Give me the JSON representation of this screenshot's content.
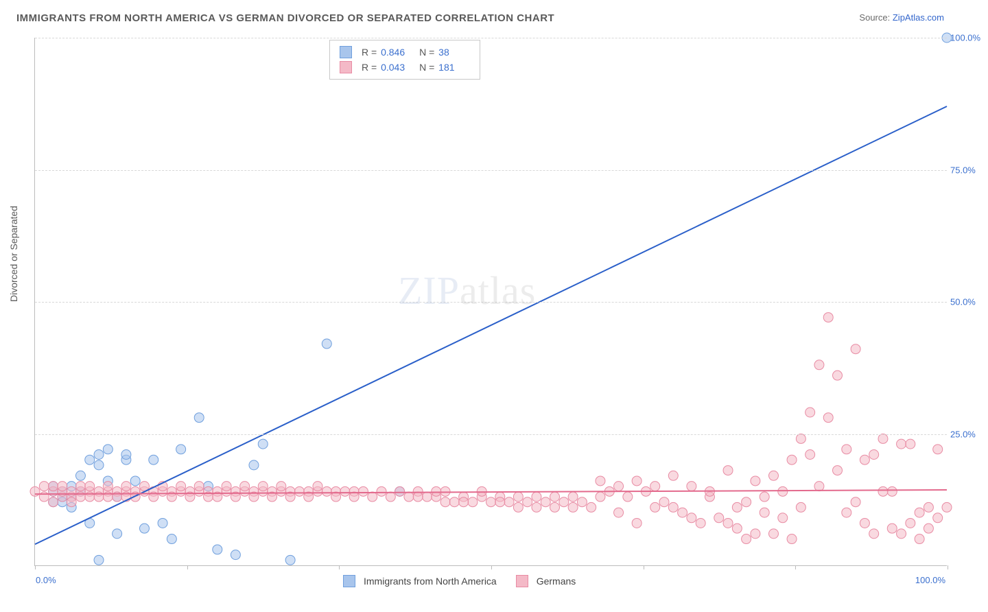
{
  "title": "IMMIGRANTS FROM NORTH AMERICA VS GERMAN DIVORCED OR SEPARATED CORRELATION CHART",
  "source_label": "Source:",
  "source_name": "ZipAtlas.com",
  "ylabel": "Divorced or Separated",
  "watermark_bold": "ZIP",
  "watermark_thin": "atlas",
  "chart": {
    "type": "scatter",
    "xlim": [
      0,
      100
    ],
    "ylim": [
      0,
      100
    ],
    "y_ticks": [
      25,
      50,
      75,
      100
    ],
    "y_tick_labels": [
      "25.0%",
      "50.0%",
      "75.0%",
      "100.0%"
    ],
    "x_ticks": [
      0,
      16.67,
      33.33,
      50,
      66.67,
      83.33,
      100
    ],
    "x_label_min": "0.0%",
    "x_label_max": "100.0%",
    "background_color": "#ffffff",
    "grid_color": "#d8d8d8",
    "series": [
      {
        "name": "Immigrants from North America",
        "color_fill": "#a8c5ec",
        "color_stroke": "#6f9fdd",
        "marker_radius": 7,
        "fill_opacity": 0.55,
        "stats": {
          "R": "0.846",
          "N": "38"
        },
        "trend": {
          "x1": 0,
          "y1": 4,
          "x2": 100,
          "y2": 87,
          "color": "#2a5fc9",
          "width": 2
        },
        "points": [
          [
            2,
            14
          ],
          [
            2,
            12
          ],
          [
            2,
            15
          ],
          [
            3,
            13
          ],
          [
            3,
            14
          ],
          [
            3,
            12
          ],
          [
            4,
            13
          ],
          [
            4,
            15
          ],
          [
            4,
            11
          ],
          [
            5,
            14
          ],
          [
            5,
            17
          ],
          [
            6,
            20
          ],
          [
            6,
            8
          ],
          [
            7,
            19
          ],
          [
            7,
            21
          ],
          [
            8,
            22
          ],
          [
            8,
            16
          ],
          [
            9,
            13
          ],
          [
            9,
            6
          ],
          [
            10,
            20
          ],
          [
            10,
            21
          ],
          [
            11,
            16
          ],
          [
            12,
            7
          ],
          [
            13,
            20
          ],
          [
            14,
            8
          ],
          [
            15,
            5
          ],
          [
            16,
            22
          ],
          [
            18,
            28
          ],
          [
            19,
            15
          ],
          [
            20,
            3
          ],
          [
            22,
            2
          ],
          [
            24,
            19
          ],
          [
            25,
            23
          ],
          [
            28,
            1
          ],
          [
            32,
            42
          ],
          [
            7,
            1
          ],
          [
            40,
            14
          ],
          [
            100,
            100
          ]
        ]
      },
      {
        "name": "Germans",
        "color_fill": "#f4b9c7",
        "color_stroke": "#e88ba3",
        "marker_radius": 7,
        "fill_opacity": 0.55,
        "stats": {
          "R": "0.043",
          "N": "181"
        },
        "trend": {
          "x1": 0,
          "y1": 13.5,
          "x2": 100,
          "y2": 14.3,
          "color": "#e36a8d",
          "width": 2
        },
        "points": [
          [
            0,
            14
          ],
          [
            1,
            13
          ],
          [
            1,
            15
          ],
          [
            2,
            14
          ],
          [
            2,
            12
          ],
          [
            2,
            15
          ],
          [
            3,
            13
          ],
          [
            3,
            14
          ],
          [
            3,
            15
          ],
          [
            4,
            13
          ],
          [
            4,
            14
          ],
          [
            4,
            12
          ],
          [
            5,
            14
          ],
          [
            5,
            13
          ],
          [
            5,
            15
          ],
          [
            6,
            14
          ],
          [
            6,
            13
          ],
          [
            6,
            15
          ],
          [
            7,
            14
          ],
          [
            7,
            13
          ],
          [
            8,
            14
          ],
          [
            8,
            15
          ],
          [
            8,
            13
          ],
          [
            9,
            14
          ],
          [
            9,
            13
          ],
          [
            10,
            14
          ],
          [
            10,
            15
          ],
          [
            10,
            13
          ],
          [
            11,
            14
          ],
          [
            11,
            13
          ],
          [
            12,
            14
          ],
          [
            12,
            15
          ],
          [
            13,
            14
          ],
          [
            13,
            13
          ],
          [
            14,
            14
          ],
          [
            14,
            15
          ],
          [
            15,
            14
          ],
          [
            15,
            13
          ],
          [
            16,
            14
          ],
          [
            16,
            15
          ],
          [
            17,
            14
          ],
          [
            17,
            13
          ],
          [
            18,
            14
          ],
          [
            18,
            15
          ],
          [
            19,
            14
          ],
          [
            19,
            13
          ],
          [
            20,
            14
          ],
          [
            20,
            13
          ],
          [
            21,
            14
          ],
          [
            21,
            15
          ],
          [
            22,
            14
          ],
          [
            22,
            13
          ],
          [
            23,
            14
          ],
          [
            23,
            15
          ],
          [
            24,
            14
          ],
          [
            24,
            13
          ],
          [
            25,
            14
          ],
          [
            25,
            15
          ],
          [
            26,
            14
          ],
          [
            26,
            13
          ],
          [
            27,
            14
          ],
          [
            27,
            15
          ],
          [
            28,
            14
          ],
          [
            28,
            13
          ],
          [
            29,
            14
          ],
          [
            30,
            14
          ],
          [
            30,
            13
          ],
          [
            31,
            14
          ],
          [
            31,
            15
          ],
          [
            32,
            14
          ],
          [
            33,
            14
          ],
          [
            33,
            13
          ],
          [
            34,
            14
          ],
          [
            35,
            14
          ],
          [
            35,
            13
          ],
          [
            36,
            14
          ],
          [
            37,
            13
          ],
          [
            38,
            14
          ],
          [
            39,
            13
          ],
          [
            40,
            14
          ],
          [
            41,
            13
          ],
          [
            42,
            14
          ],
          [
            43,
            13
          ],
          [
            44,
            13
          ],
          [
            45,
            12
          ],
          [
            46,
            12
          ],
          [
            47,
            13
          ],
          [
            48,
            12
          ],
          [
            49,
            13
          ],
          [
            50,
            12
          ],
          [
            51,
            13
          ],
          [
            52,
            12
          ],
          [
            53,
            11
          ],
          [
            54,
            12
          ],
          [
            55,
            11
          ],
          [
            56,
            12
          ],
          [
            57,
            11
          ],
          [
            58,
            12
          ],
          [
            59,
            11
          ],
          [
            60,
            12
          ],
          [
            61,
            11
          ],
          [
            62,
            13
          ],
          [
            63,
            14
          ],
          [
            64,
            15
          ],
          [
            65,
            13
          ],
          [
            66,
            16
          ],
          [
            67,
            14
          ],
          [
            68,
            11
          ],
          [
            69,
            12
          ],
          [
            70,
            17
          ],
          [
            71,
            10
          ],
          [
            72,
            15
          ],
          [
            73,
            8
          ],
          [
            74,
            13
          ],
          [
            75,
            9
          ],
          [
            76,
            18
          ],
          [
            77,
            7
          ],
          [
            78,
            12
          ],
          [
            79,
            16
          ],
          [
            80,
            10
          ],
          [
            81,
            6
          ],
          [
            82,
            14
          ],
          [
            83,
            20
          ],
          [
            84,
            24
          ],
          [
            85,
            29
          ],
          [
            86,
            38
          ],
          [
            87,
            47
          ],
          [
            88,
            36
          ],
          [
            89,
            22
          ],
          [
            90,
            41
          ],
          [
            91,
            20
          ],
          [
            92,
            6
          ],
          [
            93,
            24
          ],
          [
            94,
            7
          ],
          [
            95,
            23
          ],
          [
            96,
            8
          ],
          [
            97,
            10
          ],
          [
            98,
            7
          ],
          [
            99,
            22
          ],
          [
            100,
            11
          ],
          [
            62,
            16
          ],
          [
            64,
            10
          ],
          [
            66,
            8
          ],
          [
            68,
            15
          ],
          [
            70,
            11
          ],
          [
            72,
            9
          ],
          [
            74,
            14
          ],
          [
            76,
            8
          ],
          [
            78,
            5
          ],
          [
            80,
            13
          ],
          [
            45,
            14
          ],
          [
            47,
            12
          ],
          [
            49,
            14
          ],
          [
            51,
            12
          ],
          [
            53,
            13
          ],
          [
            55,
            13
          ],
          [
            57,
            13
          ],
          [
            59,
            13
          ],
          [
            42,
            13
          ],
          [
            44,
            14
          ],
          [
            82,
            9
          ],
          [
            84,
            11
          ],
          [
            86,
            15
          ],
          [
            88,
            18
          ],
          [
            90,
            12
          ],
          [
            92,
            21
          ],
          [
            94,
            14
          ],
          [
            96,
            23
          ],
          [
            98,
            11
          ],
          [
            83,
            5
          ],
          [
            85,
            21
          ],
          [
            87,
            28
          ],
          [
            89,
            10
          ],
          [
            91,
            8
          ],
          [
            93,
            14
          ],
          [
            95,
            6
          ],
          [
            97,
            5
          ],
          [
            99,
            9
          ],
          [
            81,
            17
          ],
          [
            79,
            6
          ],
          [
            77,
            11
          ]
        ]
      }
    ]
  },
  "legend_bottom": [
    {
      "label": "Immigrants from North America",
      "fill": "#a8c5ec",
      "stroke": "#6f9fdd"
    },
    {
      "label": "Germans",
      "fill": "#f4b9c7",
      "stroke": "#e88ba3"
    }
  ]
}
